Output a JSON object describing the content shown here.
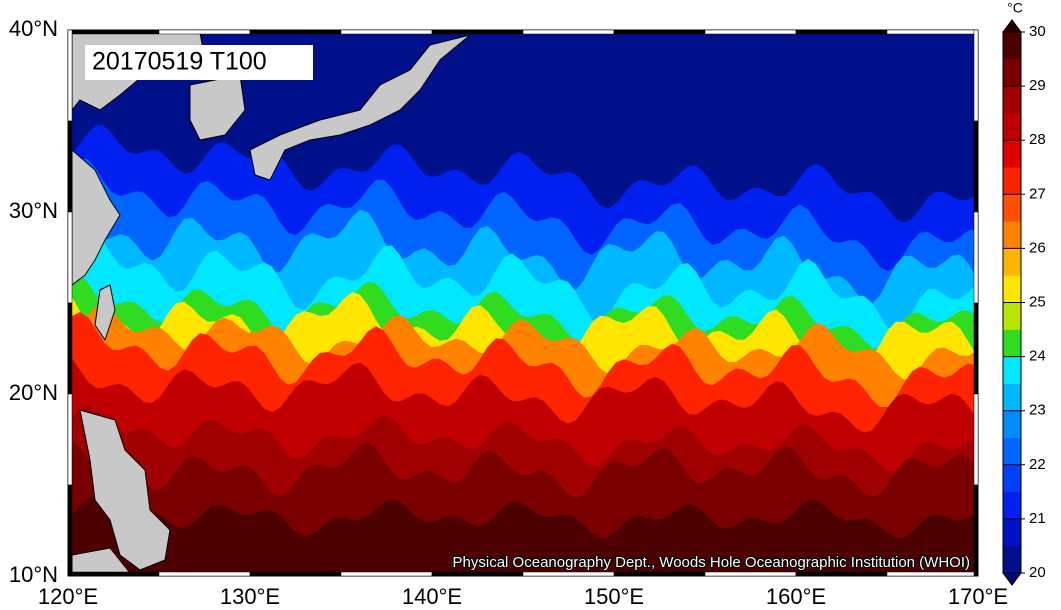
{
  "map": {
    "title": "20170519 T100",
    "credit": "Physical Oceanography Dept., Woods Hole Oceanographic Institution (WHOI)",
    "lon_labels": [
      "120°E",
      "130°E",
      "140°E",
      "150°E",
      "160°E",
      "170°E"
    ],
    "lat_labels": [
      "40°N",
      "30°N",
      "20°N",
      "10°N"
    ],
    "colorbar": {
      "unit": "°C",
      "range": [
        20,
        30
      ],
      "ticks": [
        20,
        21,
        22,
        23,
        24,
        25,
        26,
        27,
        28,
        29,
        30
      ],
      "colors": [
        "#00108a",
        "#0012c8",
        "#0020f0",
        "#0040ff",
        "#0064ff",
        "#008cff",
        "#00b8ff",
        "#00e8ff",
        "#30dc20",
        "#b4e600",
        "#ffe600",
        "#ffb400",
        "#ff8200",
        "#ff5000",
        "#ff2400",
        "#e00000",
        "#c00000",
        "#a00000",
        "#7a0000",
        "#4c0000"
      ],
      "under_color": "#000c70",
      "over_color": "#2a0000"
    }
  }
}
